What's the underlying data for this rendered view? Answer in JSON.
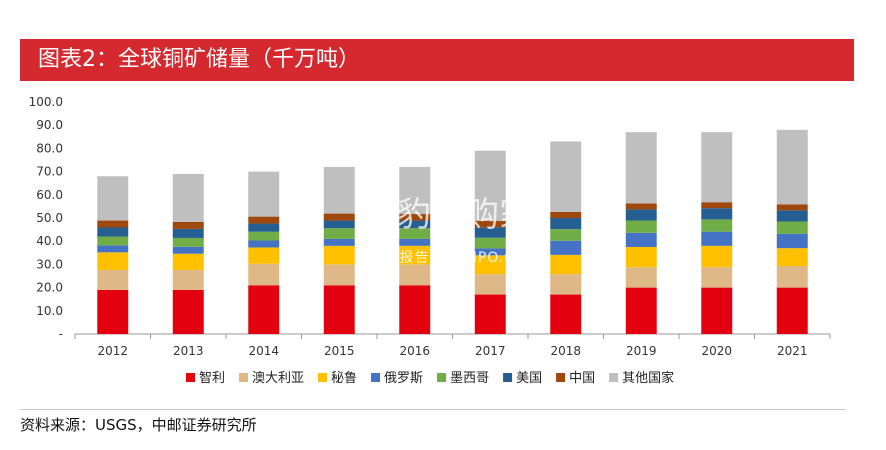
{
  "header": {
    "title": "图表2：全球铜矿储量（千万吨）"
  },
  "footer": {
    "source": "资料来源：USGS，中邮证券研究所"
  },
  "watermark": {
    "main": "头豹并购家",
    "sub": "行业报告 | IPOIPO.CN"
  },
  "chart_data": {
    "type": "bar",
    "stacked": true,
    "categories": [
      "2012",
      "2013",
      "2014",
      "2015",
      "2016",
      "2017",
      "2018",
      "2019",
      "2020",
      "2021"
    ],
    "ylim": [
      0,
      100
    ],
    "ytick_labels": [
      "-",
      "10.0",
      "20.0",
      "30.0",
      "40.0",
      "50.0",
      "60.0",
      "70.0",
      "80.0",
      "90.0",
      "100.0"
    ],
    "grid": false,
    "legend_position": "bottom",
    "series": [
      {
        "name": "智利",
        "color": "#e3000f",
        "values": [
          19,
          19,
          21,
          21,
          21,
          17,
          17,
          20,
          20,
          20
        ]
      },
      {
        "name": "澳大利亚",
        "color": "#deb887",
        "values": [
          8.6,
          8.6,
          9.3,
          9,
          9,
          8.8,
          8.8,
          8.8,
          8.8,
          9.3
        ]
      },
      {
        "name": "秘鲁",
        "color": "#ffc000",
        "values": [
          7.6,
          7.0,
          7.0,
          8.0,
          8.0,
          8.1,
          8.3,
          8.7,
          9.2,
          7.7
        ]
      },
      {
        "name": "俄罗斯",
        "color": "#4472c4",
        "values": [
          3.0,
          3.0,
          3.0,
          3.0,
          3.0,
          3.0,
          6.1,
          6.1,
          6.1,
          6.2
        ]
      },
      {
        "name": "墨西哥",
        "color": "#70ad47",
        "values": [
          3.8,
          3.8,
          3.8,
          4.6,
          4.6,
          4.6,
          5.0,
          5.3,
          5.3,
          5.3
        ]
      },
      {
        "name": "美国",
        "color": "#255e91",
        "values": [
          3.9,
          3.9,
          3.5,
          3.3,
          3.3,
          4.5,
          4.8,
          4.8,
          4.8,
          4.8
        ]
      },
      {
        "name": "中国",
        "color": "#9e480e",
        "values": [
          3.0,
          3.0,
          3.0,
          3.0,
          2.8,
          2.7,
          2.6,
          2.6,
          2.6,
          2.6
        ]
      },
      {
        "name": "其他国家",
        "color": "#bfbfbf",
        "values": [
          19.1,
          20.7,
          19.4,
          20.1,
          20.3,
          30.3,
          30.4,
          30.7,
          30.2,
          32.1
        ]
      }
    ]
  }
}
